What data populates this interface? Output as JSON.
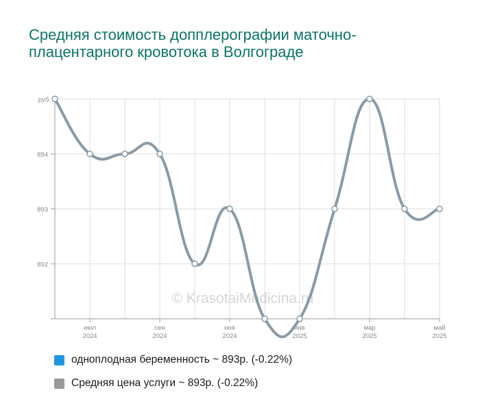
{
  "title": "Средняя стоимость допплерографии маточно-плацентарного кровотока в Волгограде",
  "watermark": "© KrasotaiMedicina.ru",
  "legend": [
    {
      "label": "одноплодная беременность ~ 893р. (-0.22%)",
      "color": "#2196e3"
    },
    {
      "label": "Средняя цена услуги ~ 893р. (-0.22%)",
      "color": "#999999"
    }
  ],
  "chart_data": {
    "type": "line",
    "y_unit_label": "руб.",
    "y_ticks": [
      892,
      893,
      894
    ],
    "ylim": [
      891,
      895
    ],
    "x_labels": [
      {
        "month": "июл",
        "year": "2024",
        "index": 1
      },
      {
        "month": "сен",
        "year": "2024",
        "index": 3
      },
      {
        "month": "ноя",
        "year": "2024",
        "index": 5
      },
      {
        "month": "янв",
        "year": "2025",
        "index": 7
      },
      {
        "month": "мар",
        "year": "2025",
        "index": 9
      },
      {
        "month": "май",
        "year": "2025",
        "index": 11
      }
    ],
    "x": [
      "2024-06",
      "2024-07",
      "2024-08",
      "2024-09",
      "2024-10",
      "2024-11",
      "2024-12",
      "2025-01",
      "2025-02",
      "2025-03",
      "2025-04",
      "2025-05"
    ],
    "series": [
      {
        "name": "одноплодная беременность",
        "color": "#2196e3",
        "values": [
          895,
          894,
          894,
          894,
          892,
          893,
          891,
          891,
          893,
          895,
          893,
          893
        ]
      },
      {
        "name": "Средняя цена услуги",
        "color": "#8a9aa6",
        "values": [
          895,
          894,
          894,
          894,
          892,
          893,
          891,
          891,
          893,
          895,
          893,
          893
        ]
      }
    ],
    "grid": true
  }
}
